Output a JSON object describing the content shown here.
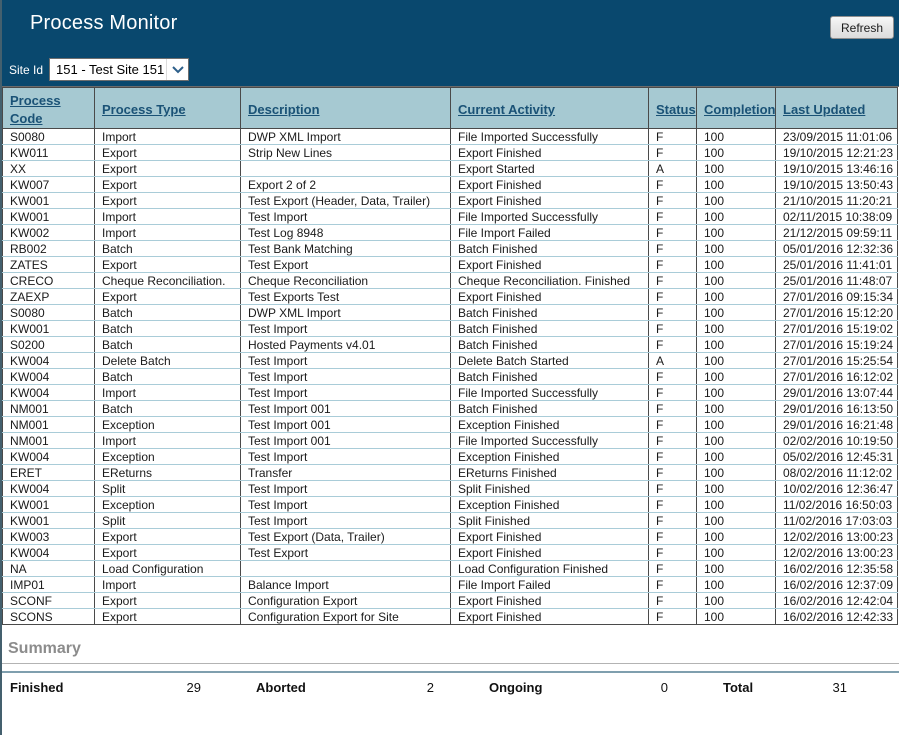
{
  "header": {
    "title": "Process Monitor",
    "refresh_label": "Refresh",
    "site_id_label": "Site Id",
    "site_id_value": "151 - Test Site 151",
    "site_dropdown_icon": "chevron-down"
  },
  "colors": {
    "banner_bg": "#09486e",
    "table_header_bg": "#a6c9d2",
    "header_link": "#1a5276",
    "row_separator": "#a9ccd8",
    "column_separator": "#4a4a4a",
    "summary_rule": "#7f9fae"
  },
  "table": {
    "columns": [
      "Process Code",
      "Process Type",
      "Description",
      "Current Activity",
      "Status",
      "Completion",
      "Last Updated"
    ],
    "rows": [
      [
        "S0080",
        "Import",
        "DWP XML Import",
        "File Imported Successfully",
        "F",
        "100",
        "23/09/2015 11:01:06"
      ],
      [
        "KW011",
        "Export",
        "Strip New Lines",
        "Export Finished",
        "F",
        "100",
        "19/10/2015 12:21:23"
      ],
      [
        "XX",
        "Export",
        "",
        "Export Started",
        "A",
        "100",
        "19/10/2015 13:46:16"
      ],
      [
        "KW007",
        "Export",
        "Export 2 of 2",
        "Export Finished",
        "F",
        "100",
        "19/10/2015 13:50:43"
      ],
      [
        "KW001",
        "Export",
        "Test Export (Header, Data, Trailer)",
        "Export Finished",
        "F",
        "100",
        "21/10/2015 11:20:21"
      ],
      [
        "KW001",
        "Import",
        "Test Import",
        "File Imported Successfully",
        "F",
        "100",
        "02/11/2015 10:38:09"
      ],
      [
        "KW002",
        "Import",
        "Test Log 8948",
        "File Import Failed",
        "F",
        "100",
        "21/12/2015 09:59:11"
      ],
      [
        "RB002",
        "Batch",
        "Test Bank Matching",
        "Batch Finished",
        "F",
        "100",
        "05/01/2016 12:32:36"
      ],
      [
        "ZATES",
        "Export",
        "Test Export",
        "Export Finished",
        "F",
        "100",
        "25/01/2016 11:41:01"
      ],
      [
        "CRECO",
        "Cheque Reconciliation.",
        "Cheque Reconciliation",
        "Cheque Reconciliation. Finished",
        "F",
        "100",
        "25/01/2016 11:48:07"
      ],
      [
        "ZAEXP",
        "Export",
        "Test Exports Test",
        "Export Finished",
        "F",
        "100",
        "27/01/2016 09:15:34"
      ],
      [
        "S0080",
        "Batch",
        "DWP XML Import",
        "Batch Finished",
        "F",
        "100",
        "27/01/2016 15:12:20"
      ],
      [
        "KW001",
        "Batch",
        "Test Import",
        "Batch Finished",
        "F",
        "100",
        "27/01/2016 15:19:02"
      ],
      [
        "S0200",
        "Batch",
        "Hosted Payments v4.01",
        "Batch Finished",
        "F",
        "100",
        "27/01/2016 15:19:24"
      ],
      [
        "KW004",
        "Delete Batch",
        "Test Import",
        "Delete Batch Started",
        "A",
        "100",
        "27/01/2016 15:25:54"
      ],
      [
        "KW004",
        "Batch",
        "Test Import",
        "Batch Finished",
        "F",
        "100",
        "27/01/2016 16:12:02"
      ],
      [
        "KW004",
        "Import",
        "Test Import",
        "File Imported Successfully",
        "F",
        "100",
        "29/01/2016 13:07:44"
      ],
      [
        "NM001",
        "Batch",
        "Test Import 001",
        "Batch Finished",
        "F",
        "100",
        "29/01/2016 16:13:50"
      ],
      [
        "NM001",
        "Exception",
        "Test Import 001",
        "Exception Finished",
        "F",
        "100",
        "29/01/2016 16:21:48"
      ],
      [
        "NM001",
        "Import",
        "Test Import 001",
        "File Imported Successfully",
        "F",
        "100",
        "02/02/2016 10:19:50"
      ],
      [
        "KW004",
        "Exception",
        "Test Import",
        "Exception Finished",
        "F",
        "100",
        "05/02/2016 12:45:31"
      ],
      [
        "ERET",
        "EReturns",
        "Transfer",
        "EReturns Finished",
        "F",
        "100",
        "08/02/2016 11:12:02"
      ],
      [
        "KW004",
        "Split",
        "Test Import",
        "Split Finished",
        "F",
        "100",
        "10/02/2016 12:36:47"
      ],
      [
        "KW001",
        "Exception",
        "Test Import",
        "Exception Finished",
        "F",
        "100",
        "11/02/2016 16:50:03"
      ],
      [
        "KW001",
        "Split",
        "Test Import",
        "Split Finished",
        "F",
        "100",
        "11/02/2016 17:03:03"
      ],
      [
        "KW003",
        "Export",
        "Test Export (Data, Trailer)",
        "Export Finished",
        "F",
        "100",
        "12/02/2016 13:00:23"
      ],
      [
        "KW004",
        "Export",
        "Test Export",
        "Export Finished",
        "F",
        "100",
        "12/02/2016 13:00:23"
      ],
      [
        "NA",
        "Load Configuration",
        "",
        "Load Configuration Finished",
        "F",
        "100",
        "16/02/2016 12:35:58"
      ],
      [
        "IMP01",
        "Import",
        "Balance Import",
        "File Import Failed",
        "F",
        "100",
        "16/02/2016 12:37:09"
      ],
      [
        "SCONF",
        "Export",
        "Configuration Export",
        "Export Finished",
        "F",
        "100",
        "16/02/2016 12:42:04"
      ],
      [
        "SCONS",
        "Export",
        "Configuration Export for Site",
        "Export Finished",
        "F",
        "100",
        "16/02/2016 12:42:33"
      ]
    ]
  },
  "summary": {
    "title": "Summary",
    "items": [
      {
        "label": "Finished",
        "value": "29"
      },
      {
        "label": "Aborted",
        "value": "2"
      },
      {
        "label": "Ongoing",
        "value": "0"
      },
      {
        "label": "Total",
        "value": "31"
      }
    ]
  }
}
